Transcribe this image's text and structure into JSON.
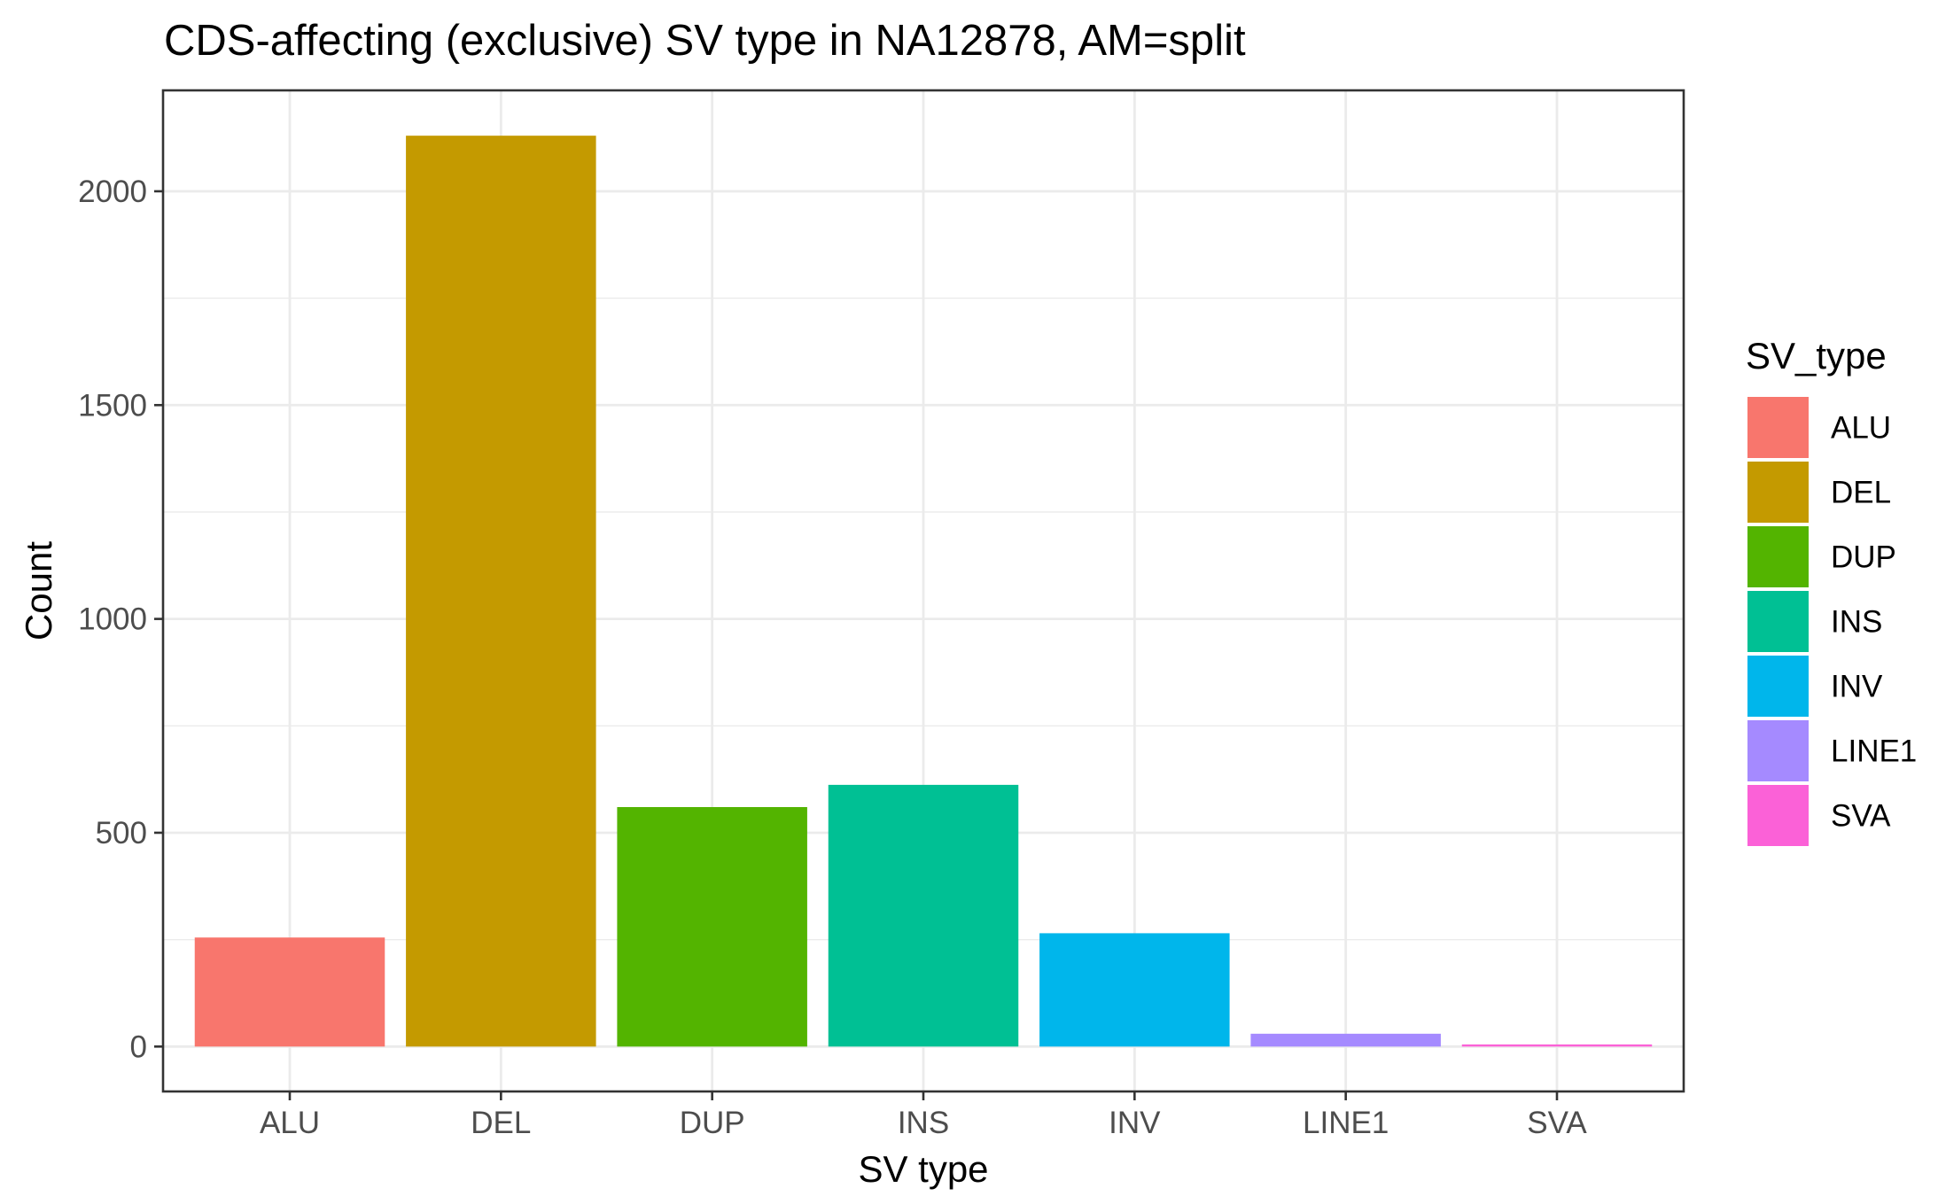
{
  "chart_data": {
    "type": "bar",
    "title": "CDS-affecting (exclusive) SV type in NA12878, AM=split",
    "xlabel": "SV type",
    "ylabel": "Count",
    "categories": [
      "ALU",
      "DEL",
      "DUP",
      "INS",
      "INV",
      "LINE1",
      "SVA"
    ],
    "values": [
      255,
      2130,
      560,
      612,
      265,
      30,
      5
    ],
    "colors": [
      "#F8766D",
      "#C49A00",
      "#53B400",
      "#00C094",
      "#00B6EB",
      "#A58AFF",
      "#FB61D7"
    ],
    "ylim": [
      -105,
      2236
    ],
    "yticks": [
      0,
      500,
      1000,
      1500,
      2000
    ],
    "yticks_labels": [
      "0",
      "500",
      "1000",
      "1500",
      "2000"
    ],
    "grid": true,
    "legend": {
      "title": "SV_type",
      "placement": "right",
      "entries": [
        "ALU",
        "DEL",
        "DUP",
        "INS",
        "INV",
        "LINE1",
        "SVA"
      ]
    }
  }
}
